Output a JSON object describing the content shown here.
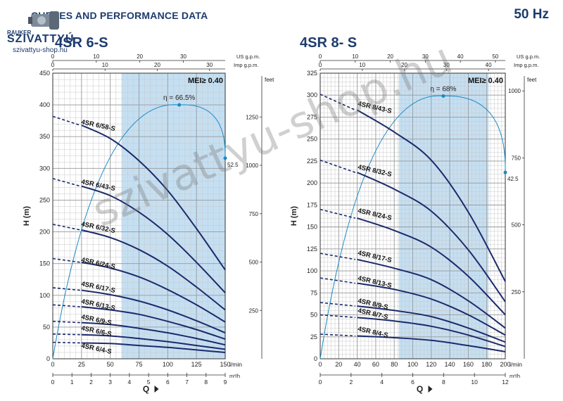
{
  "header": {
    "title": "CURVES AND PERFORMANCE DATA",
    "frequency": "50 Hz"
  },
  "logo": {
    "small": "RAUKER",
    "brand": "SZIVATTYÚ",
    "url": "szivattyu-shop.hu"
  },
  "watermark": "szivattyu-shop.hu",
  "colors": {
    "curve": "#1b2a6b",
    "efficiency": "#1a8ac4",
    "band": "#c5dff2",
    "grid": "#c8c8c8"
  },
  "chart_data": [
    {
      "type": "line",
      "title": "4SR 6-S",
      "q_unit": "l/min",
      "q_label": "Q",
      "q_range": [
        0,
        150
      ],
      "q_ticks": [
        0,
        25,
        50,
        75,
        100,
        125,
        150
      ],
      "h_unit": "H (m)",
      "h_range": [
        0,
        450
      ],
      "h_ticks": [
        0,
        50,
        100,
        150,
        200,
        250,
        300,
        350,
        400,
        450
      ],
      "feet_unit": "feet",
      "feet_ticks": [
        250,
        500,
        750,
        1000,
        1250
      ],
      "usgpm_unit": "US g.p.m.",
      "usgpm_ticks": [
        0,
        10,
        20,
        30,
        40
      ],
      "impgpm_unit": "Imp g.p.m.",
      "impgpm_ticks": [
        0,
        10,
        20,
        30
      ],
      "m3h_unit": "m³/h",
      "m3h_ticks": [
        0,
        1,
        2,
        3,
        4,
        5,
        6,
        7,
        8,
        9
      ],
      "mei": "MEI≥ 0.40",
      "band_range": [
        60,
        150
      ],
      "efficiency": {
        "label": "η = 66.5%",
        "end_label": "52.5",
        "peak": [
          110,
          400
        ],
        "end": [
          150,
          316
        ]
      },
      "series": [
        {
          "name": "4SR 6/58-S",
          "values": [
            [
              0,
              382
            ],
            [
              25,
              368
            ],
            [
              50,
              347
            ],
            [
              75,
              312
            ],
            [
              100,
              265
            ],
            [
              125,
              205
            ],
            [
              150,
              140
            ]
          ]
        },
        {
          "name": "4SR 6/43-S",
          "values": [
            [
              0,
              284
            ],
            [
              25,
              272
            ],
            [
              50,
              257
            ],
            [
              75,
              231
            ],
            [
              100,
              196
            ],
            [
              125,
              152
            ],
            [
              150,
              104
            ]
          ]
        },
        {
          "name": "4SR 6/32-S",
          "values": [
            [
              0,
              212
            ],
            [
              25,
              203
            ],
            [
              50,
              191
            ],
            [
              75,
              172
            ],
            [
              100,
              146
            ],
            [
              125,
              113
            ],
            [
              150,
              77
            ]
          ]
        },
        {
          "name": "4SR 6/24-S",
          "values": [
            [
              0,
              158
            ],
            [
              25,
              152
            ],
            [
              50,
              143
            ],
            [
              75,
              129
            ],
            [
              100,
              109
            ],
            [
              125,
              85
            ],
            [
              150,
              58
            ]
          ]
        },
        {
          "name": "4SR 6/17-S",
          "values": [
            [
              0,
              112
            ],
            [
              25,
              108
            ],
            [
              50,
              101
            ],
            [
              75,
              91
            ],
            [
              100,
              77
            ],
            [
              125,
              60
            ],
            [
              150,
              41
            ]
          ]
        },
        {
          "name": "4SR 6/13-S",
          "values": [
            [
              0,
              85
            ],
            [
              25,
              82
            ],
            [
              50,
              77
            ],
            [
              75,
              70
            ],
            [
              100,
              59
            ],
            [
              125,
              46
            ],
            [
              150,
              31
            ]
          ]
        },
        {
          "name": "4SR 6/9-S",
          "values": [
            [
              0,
              59
            ],
            [
              25,
              57
            ],
            [
              50,
              54
            ],
            [
              75,
              48
            ],
            [
              100,
              41
            ],
            [
              125,
              32
            ],
            [
              150,
              22
            ]
          ]
        },
        {
          "name": "4SR 6/6-S",
          "values": [
            [
              0,
              39
            ],
            [
              25,
              38
            ],
            [
              50,
              36
            ],
            [
              75,
              32
            ],
            [
              100,
              27
            ],
            [
              125,
              21
            ],
            [
              150,
              15
            ]
          ]
        },
        {
          "name": "4SR 6/4-S",
          "values": [
            [
              0,
              26
            ],
            [
              25,
              25
            ],
            [
              50,
              24
            ],
            [
              75,
              21
            ],
            [
              100,
              18
            ],
            [
              125,
              14
            ],
            [
              150,
              10
            ]
          ]
        }
      ]
    },
    {
      "type": "line",
      "title": "4SR 8- S",
      "q_unit": "l/min",
      "q_label": "Q",
      "q_range": [
        0,
        200
      ],
      "q_ticks": [
        0,
        20,
        40,
        60,
        80,
        100,
        120,
        140,
        160,
        180,
        200
      ],
      "h_unit": "H (m)",
      "h_range": [
        0,
        325
      ],
      "h_ticks": [
        0,
        25,
        50,
        75,
        100,
        125,
        150,
        175,
        200,
        225,
        250,
        275,
        300,
        325
      ],
      "feet_unit": "feet",
      "feet_ticks": [
        250,
        500,
        750,
        1000
      ],
      "usgpm_unit": "US g.p.m.",
      "usgpm_ticks": [
        0,
        10,
        20,
        30,
        40,
        50
      ],
      "impgpm_unit": "Imp g.p.m.",
      "impgpm_ticks": [
        0,
        10,
        20,
        30,
        40
      ],
      "m3h_unit": "m³/h",
      "m3h_ticks": [
        0,
        2,
        4,
        6,
        8,
        10,
        12
      ],
      "mei": "MEI≥ 0.40",
      "band_range": [
        85,
        182
      ],
      "efficiency": {
        "label": "η = 68%",
        "end_label": "42.5",
        "peak": [
          133,
          299
        ],
        "end": [
          200,
          212
        ]
      },
      "series": [
        {
          "name": "4SR 8/43-S",
          "values": [
            [
              0,
              301
            ],
            [
              40,
              283
            ],
            [
              80,
              258
            ],
            [
              120,
              226
            ],
            [
              160,
              167
            ],
            [
              200,
              88
            ]
          ]
        },
        {
          "name": "4SR 8/32-S",
          "values": [
            [
              0,
              226
            ],
            [
              40,
              212
            ],
            [
              80,
              193
            ],
            [
              120,
              168
            ],
            [
              160,
              124
            ],
            [
              200,
              65
            ]
          ]
        },
        {
          "name": "4SR 8/24-S",
          "values": [
            [
              0,
              170
            ],
            [
              40,
              160
            ],
            [
              80,
              146
            ],
            [
              120,
              127
            ],
            [
              160,
              94
            ],
            [
              200,
              50
            ]
          ]
        },
        {
          "name": "4SR 8/17-S",
          "values": [
            [
              0,
              120
            ],
            [
              40,
              113
            ],
            [
              80,
              103
            ],
            [
              120,
              90
            ],
            [
              160,
              66
            ],
            [
              200,
              35
            ]
          ]
        },
        {
          "name": "4SR 8/13-S",
          "values": [
            [
              0,
              92
            ],
            [
              40,
              86
            ],
            [
              80,
              79
            ],
            [
              120,
              68
            ],
            [
              160,
              50
            ],
            [
              200,
              27
            ]
          ]
        },
        {
          "name": "4SR 8/9-S",
          "values": [
            [
              0,
              64
            ],
            [
              40,
              60
            ],
            [
              80,
              55
            ],
            [
              120,
              48
            ],
            [
              160,
              35
            ],
            [
              200,
              19
            ]
          ]
        },
        {
          "name": "4SR 8/7-S",
          "values": [
            [
              0,
              50
            ],
            [
              40,
              47
            ],
            [
              80,
              43
            ],
            [
              120,
              37
            ],
            [
              160,
              27
            ],
            [
              200,
              14
            ]
          ]
        },
        {
          "name": "4SR 8/4-S",
          "values": [
            [
              0,
              28
            ],
            [
              40,
              26
            ],
            [
              80,
              24
            ],
            [
              120,
              21
            ],
            [
              160,
              15
            ],
            [
              200,
              8
            ]
          ]
        }
      ]
    }
  ]
}
